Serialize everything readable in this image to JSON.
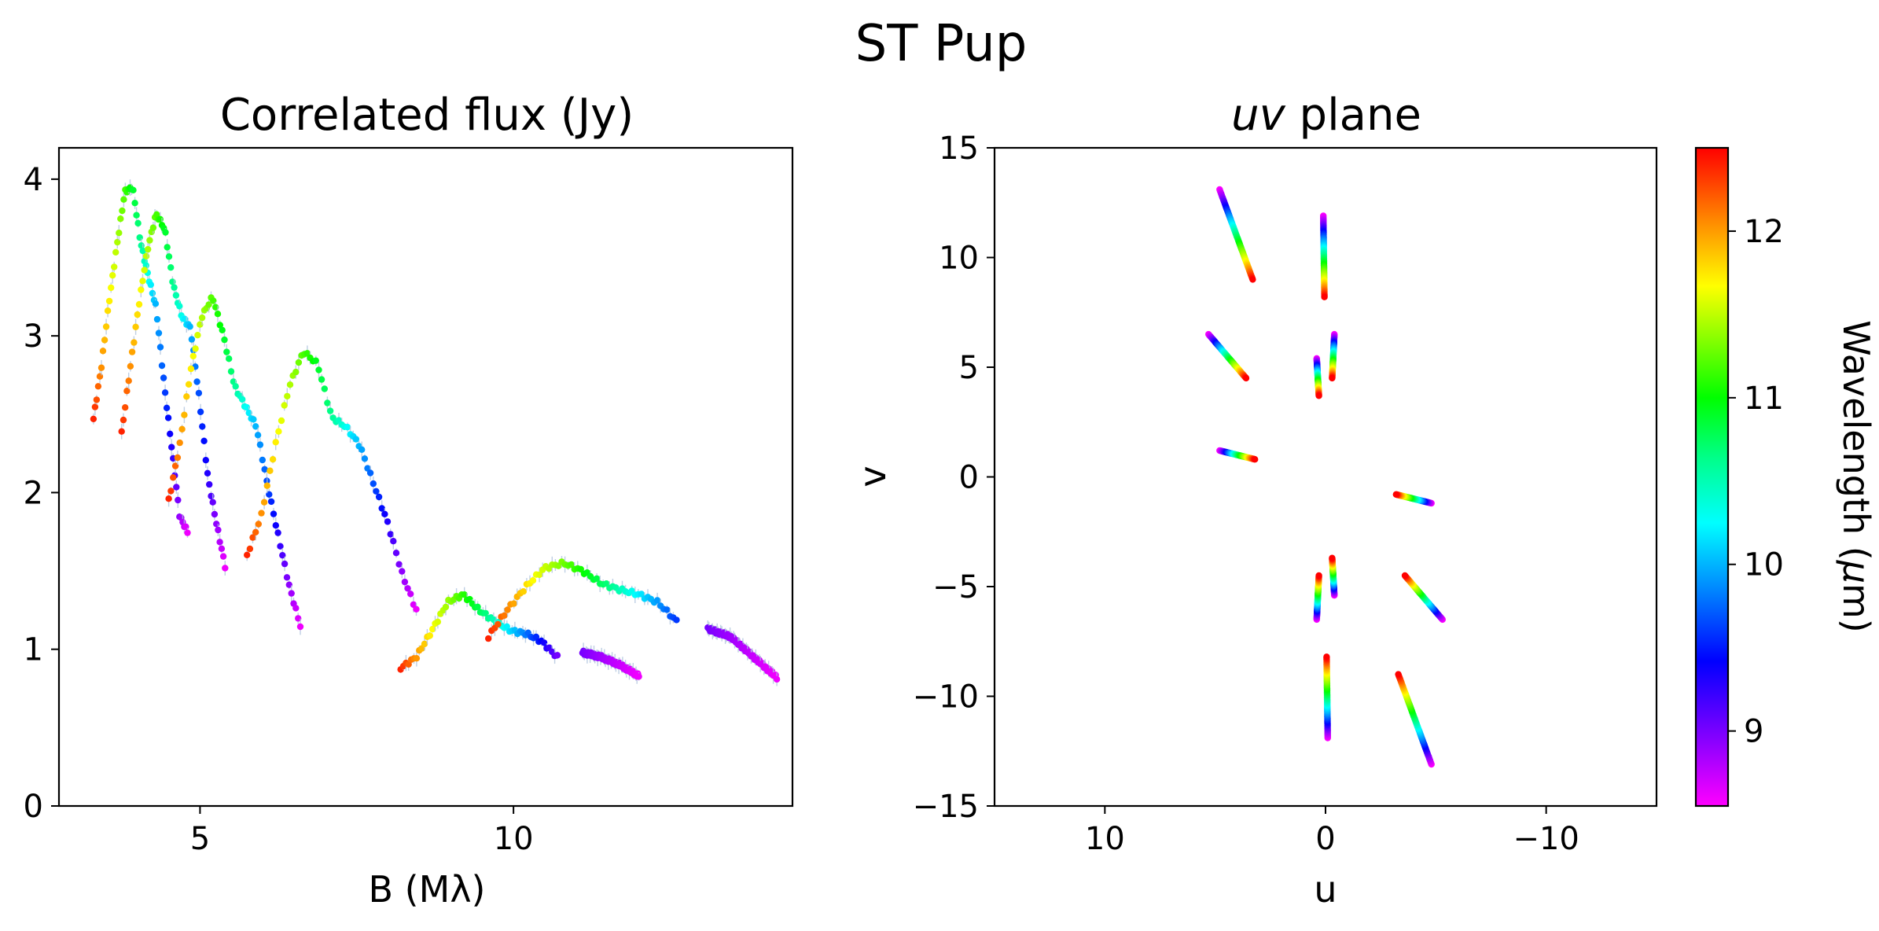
{
  "figure": {
    "suptitle": "ST Pup"
  },
  "colors": {
    "colormap": [
      "#ff00ff",
      "#8800ff",
      "#0000ff",
      "#0088ff",
      "#00ffff",
      "#00ff88",
      "#00ff00",
      "#88ff00",
      "#ffff00",
      "#ff8800",
      "#ff0000"
    ],
    "errorbar": "#b0c4de"
  },
  "chart_data": [
    {
      "type": "scatter",
      "title": "Correlated flux (Jy)",
      "xlabel": "B (Mλ)",
      "ylabel": "",
      "xlim": [
        2.75,
        14.45
      ],
      "ylim": [
        0,
        4.2
      ],
      "xticks": [
        5,
        10
      ],
      "yticks": [
        0,
        1,
        2,
        3,
        4
      ],
      "color_by": "wavelength",
      "series": [
        {
          "x_start": 3.3,
          "x_end": 4.8,
          "wl_start": 12.4,
          "wl_end": 8.6,
          "y": [
            2.47,
            2.8,
            3.22,
            3.58,
            3.92,
            3.95,
            3.6,
            3.38,
            3.18,
            2.7,
            2.28,
            1.85,
            1.75
          ]
        },
        {
          "x_start": 3.75,
          "x_end": 5.4,
          "wl_start": 12.4,
          "wl_end": 8.6,
          "y": [
            2.38,
            2.8,
            3.2,
            3.55,
            3.78,
            3.68,
            3.32,
            3.12,
            3.05,
            2.6,
            2.1,
            1.8,
            1.53
          ]
        },
        {
          "x_start": 4.5,
          "x_end": 6.6,
          "wl_start": 12.4,
          "wl_end": 8.6,
          "y": [
            1.95,
            2.3,
            2.78,
            3.12,
            3.25,
            3.0,
            2.68,
            2.55,
            2.42,
            2.05,
            1.72,
            1.4,
            1.15
          ]
        },
        {
          "x_start": 5.75,
          "x_end": 8.45,
          "wl_start": 12.4,
          "wl_end": 8.6,
          "y": [
            1.6,
            1.85,
            2.3,
            2.68,
            2.9,
            2.82,
            2.48,
            2.42,
            2.3,
            2.05,
            1.8,
            1.48,
            1.25
          ]
        },
        {
          "x_start": 8.2,
          "x_end": 10.7,
          "wl_start": 12.4,
          "wl_end": 9.0,
          "y": [
            0.88,
            0.95,
            1.12,
            1.3,
            1.35,
            1.25,
            1.18,
            1.12,
            1.1,
            1.05,
            0.95
          ]
        },
        {
          "x_start": 9.6,
          "x_end": 12.6,
          "wl_start": 12.4,
          "wl_end": 9.5,
          "y": [
            1.08,
            1.25,
            1.4,
            1.52,
            1.55,
            1.5,
            1.42,
            1.38,
            1.35,
            1.3,
            1.18
          ]
        },
        {
          "x_start": 11.1,
          "x_end": 12.0,
          "wl_start": 9.0,
          "wl_end": 8.6,
          "y": [
            0.98,
            0.95,
            0.9,
            0.83
          ]
        },
        {
          "x_start": 13.1,
          "x_end": 14.2,
          "wl_start": 9.0,
          "wl_end": 8.6,
          "y": [
            1.13,
            1.08,
            0.95,
            0.82
          ]
        }
      ]
    },
    {
      "type": "scatter",
      "title": "uv plane",
      "title_italic_part": "uv",
      "title_rest": " plane",
      "xlabel": "u",
      "ylabel": "v",
      "xlim": [
        15,
        -15
      ],
      "ylim": [
        -15,
        15
      ],
      "xticks": [
        10,
        0,
        -10
      ],
      "yticks": [
        -15,
        -10,
        -5,
        0,
        5,
        10,
        15
      ],
      "xtick_labels": [
        "10",
        "0",
        "−10"
      ],
      "ytick_labels": [
        "−15",
        "−10",
        "−5",
        "0",
        "5",
        "10",
        "15"
      ],
      "color_by": "wavelength",
      "tracks": [
        {
          "u_short": 4.8,
          "v_short": 13.1,
          "u_long": 3.3,
          "v_long": 9.0
        },
        {
          "u_short": 0.1,
          "v_short": 11.9,
          "u_long": 0.05,
          "v_long": 8.2
        },
        {
          "u_short": 5.3,
          "v_short": 6.5,
          "u_long": 3.6,
          "v_long": 4.5
        },
        {
          "u_short": -0.4,
          "v_short": 6.5,
          "u_long": -0.3,
          "v_long": 4.5
        },
        {
          "u_short": 0.4,
          "v_short": 5.4,
          "u_long": 0.3,
          "v_long": 3.7
        },
        {
          "u_short": 4.8,
          "v_short": 1.2,
          "u_long": 3.2,
          "v_long": 0.8
        },
        {
          "u_short": -4.8,
          "v_short": -1.2,
          "u_long": -3.2,
          "v_long": -0.8
        },
        {
          "u_short": -0.4,
          "v_short": -5.4,
          "u_long": -0.3,
          "v_long": -3.7
        },
        {
          "u_short": 0.4,
          "v_short": -6.5,
          "u_long": 0.3,
          "v_long": -4.5
        },
        {
          "u_short": -5.3,
          "v_short": -6.5,
          "u_long": -3.6,
          "v_long": -4.5
        },
        {
          "u_short": -0.1,
          "v_short": -11.9,
          "u_long": -0.05,
          "v_long": -8.2
        },
        {
          "u_short": -4.8,
          "v_short": -13.1,
          "u_long": -3.3,
          "v_long": -9.0
        }
      ]
    },
    {
      "type": "colorbar",
      "label": "Wavelength (μm)",
      "label_plain_part": "Wavelength (",
      "label_italic_part": "μ",
      "label_end": "m)",
      "range": [
        8.55,
        12.5
      ],
      "ticks": [
        9,
        10,
        11,
        12
      ]
    }
  ]
}
